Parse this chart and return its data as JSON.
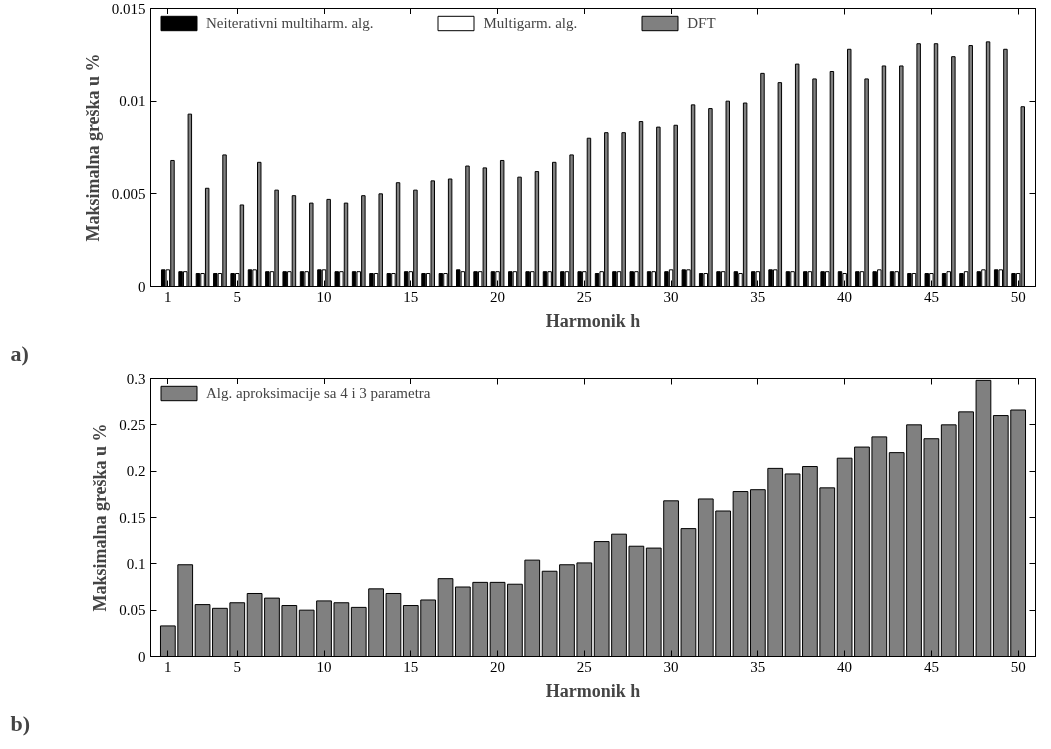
{
  "chart_data": [
    {
      "type": "bar",
      "xlabel": "Harmonik h",
      "ylabel": "Maksimalna greška u %",
      "annotations": [
        "a)"
      ],
      "x": [
        1,
        2,
        3,
        4,
        5,
        6,
        7,
        8,
        9,
        10,
        11,
        12,
        13,
        14,
        15,
        16,
        17,
        18,
        19,
        20,
        21,
        22,
        23,
        24,
        25,
        26,
        27,
        28,
        29,
        30,
        31,
        32,
        33,
        34,
        35,
        36,
        37,
        38,
        39,
        40,
        41,
        42,
        43,
        44,
        45,
        46,
        47,
        48,
        49,
        50
      ],
      "xlim": [
        0,
        51
      ],
      "xticks": [
        1,
        5,
        10,
        15,
        20,
        25,
        30,
        35,
        40,
        45,
        50
      ],
      "ylim": [
        0,
        0.015
      ],
      "yticks": [
        0,
        0.005,
        0.01,
        0.015
      ],
      "grid": false,
      "legend": "top",
      "series": [
        {
          "name": "Neiterativni multiharm. alg.",
          "color": "#000000",
          "values": [
            0.0009,
            0.0008,
            0.0007,
            0.0007,
            0.0007,
            0.0009,
            0.0008,
            0.0008,
            0.0008,
            0.0009,
            0.0008,
            0.0008,
            0.0007,
            0.0007,
            0.0008,
            0.0007,
            0.0007,
            0.0009,
            0.0008,
            0.0008,
            0.0008,
            0.0008,
            0.0008,
            0.0008,
            0.0008,
            0.0007,
            0.0008,
            0.0008,
            0.0008,
            0.0008,
            0.0009,
            0.0007,
            0.0008,
            0.0008,
            0.0008,
            0.0009,
            0.0008,
            0.0008,
            0.0008,
            0.0008,
            0.0008,
            0.0008,
            0.0008,
            0.0007,
            0.0007,
            0.0007,
            0.0007,
            0.0008,
            0.0009,
            0.0007
          ]
        },
        {
          "name": "Multigarm. alg.",
          "color": "#ffffff",
          "values": [
            0.0009,
            0.0008,
            0.0007,
            0.0007,
            0.0007,
            0.0009,
            0.0008,
            0.0008,
            0.0008,
            0.0009,
            0.0008,
            0.0008,
            0.0007,
            0.0007,
            0.0008,
            0.0007,
            0.0007,
            0.0008,
            0.0008,
            0.0008,
            0.0008,
            0.0008,
            0.0008,
            0.0008,
            0.0008,
            0.0008,
            0.0008,
            0.0008,
            0.0008,
            0.0009,
            0.0009,
            0.0007,
            0.0008,
            0.0007,
            0.0008,
            0.0009,
            0.0008,
            0.0008,
            0.0008,
            0.0007,
            0.0008,
            0.0009,
            0.0008,
            0.0007,
            0.0007,
            0.0008,
            0.0008,
            0.0009,
            0.0009,
            0.0007
          ]
        },
        {
          "name": "DFT",
          "color": "#808080",
          "values": [
            0.0068,
            0.0093,
            0.0053,
            0.0071,
            0.0044,
            0.0067,
            0.0052,
            0.0049,
            0.0045,
            0.0047,
            0.0045,
            0.0049,
            0.005,
            0.0056,
            0.0052,
            0.0057,
            0.0058,
            0.0065,
            0.0064,
            0.0068,
            0.0059,
            0.0062,
            0.0067,
            0.0071,
            0.008,
            0.0083,
            0.0083,
            0.0089,
            0.0086,
            0.0087,
            0.0098,
            0.0096,
            0.01,
            0.0099,
            0.0115,
            0.011,
            0.012,
            0.0112,
            0.0116,
            0.0128,
            0.0112,
            0.0119,
            0.0119,
            0.0131,
            0.0131,
            0.0124,
            0.013,
            0.0132,
            0.0128,
            0.0097
          ]
        }
      ]
    },
    {
      "type": "bar",
      "xlabel": "Harmonik h",
      "ylabel": "Maksimalna greška u %",
      "annotations": [
        "b)"
      ],
      "x": [
        1,
        2,
        3,
        4,
        5,
        6,
        7,
        8,
        9,
        10,
        11,
        12,
        13,
        14,
        15,
        16,
        17,
        18,
        19,
        20,
        21,
        22,
        23,
        24,
        25,
        26,
        27,
        28,
        29,
        30,
        31,
        32,
        33,
        34,
        35,
        36,
        37,
        38,
        39,
        40,
        41,
        42,
        43,
        44,
        45,
        46,
        47,
        48,
        49,
        50
      ],
      "xlim": [
        0,
        51
      ],
      "xticks": [
        1,
        5,
        10,
        15,
        20,
        25,
        30,
        35,
        40,
        45,
        50
      ],
      "ylim": [
        0,
        0.3
      ],
      "yticks": [
        0,
        0.05,
        0.1,
        0.15,
        0.2,
        0.25,
        0.3
      ],
      "grid": false,
      "legend": "top left",
      "series": [
        {
          "name": "Alg. aproksimacije sa 4 i 3 parametra",
          "color": "#808080",
          "values": [
            0.033,
            0.099,
            0.056,
            0.052,
            0.058,
            0.068,
            0.063,
            0.055,
            0.05,
            0.06,
            0.058,
            0.053,
            0.073,
            0.068,
            0.055,
            0.061,
            0.084,
            0.075,
            0.08,
            0.08,
            0.078,
            0.104,
            0.092,
            0.099,
            0.101,
            0.124,
            0.132,
            0.119,
            0.117,
            0.168,
            0.138,
            0.17,
            0.157,
            0.178,
            0.18,
            0.203,
            0.197,
            0.205,
            0.182,
            0.214,
            0.226,
            0.237,
            0.22,
            0.25,
            0.235,
            0.25,
            0.264,
            0.298,
            0.26,
            0.266
          ]
        }
      ]
    }
  ]
}
